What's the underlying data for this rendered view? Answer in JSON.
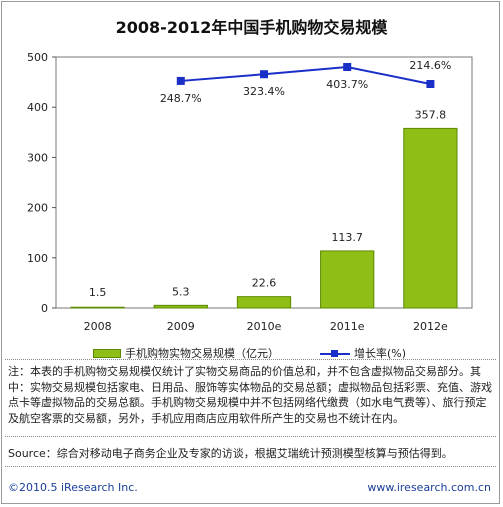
{
  "chart_data": {
    "type": "bar",
    "title": "2008-2012年中国手机购物交易规模",
    "categories": [
      "2008",
      "2009",
      "2010e",
      "2011e",
      "2012e"
    ],
    "series": [
      {
        "name": "手机购物实物交易规模（亿元）",
        "type": "bar",
        "values": [
          1.5,
          5.3,
          22.6,
          113.7,
          357.8
        ],
        "labels": [
          "1.5",
          "5.3",
          "22.6",
          "113.7",
          "357.8"
        ]
      },
      {
        "name": "增长率(%)",
        "type": "line",
        "values": [
          null,
          248.7,
          323.4,
          403.7,
          214.6
        ],
        "labels": [
          "",
          "248.7%",
          "323.4%",
          "403.7%",
          "214.6%"
        ]
      }
    ],
    "ylim": [
      0,
      500
    ],
    "yticks": [
      0,
      100,
      200,
      300,
      400,
      500
    ],
    "grid": false,
    "legend_position": "bottom",
    "colors": {
      "bar": "#8fbe16",
      "bar_edge": "#5a8a00",
      "line": "#1a2fc8"
    }
  },
  "note": "注：本表的手机购物交易规模仅统计了实物交易商品的价值总和，并不包含虚拟物品交易部分。其中：实物交易规模包括家电、日用品、服饰等实体物品的交易总额；虚拟物品包括彩票、充值、游戏点卡等虚拟物品的交易总额。手机购物交易规模中并不包括网络代缴费（如水电气费等）、旅行预定及航空客票的交易额，另外，手机应用商店应用软件所产生的交易也不统计在内。",
  "source": "Source：综合对移动电子商务企业及专家的访谈，根据艾瑞统计预测模型核算与预估得到。",
  "copyright": "©2010.5 iResearch Inc.",
  "website": "www.iresearch.com.cn"
}
